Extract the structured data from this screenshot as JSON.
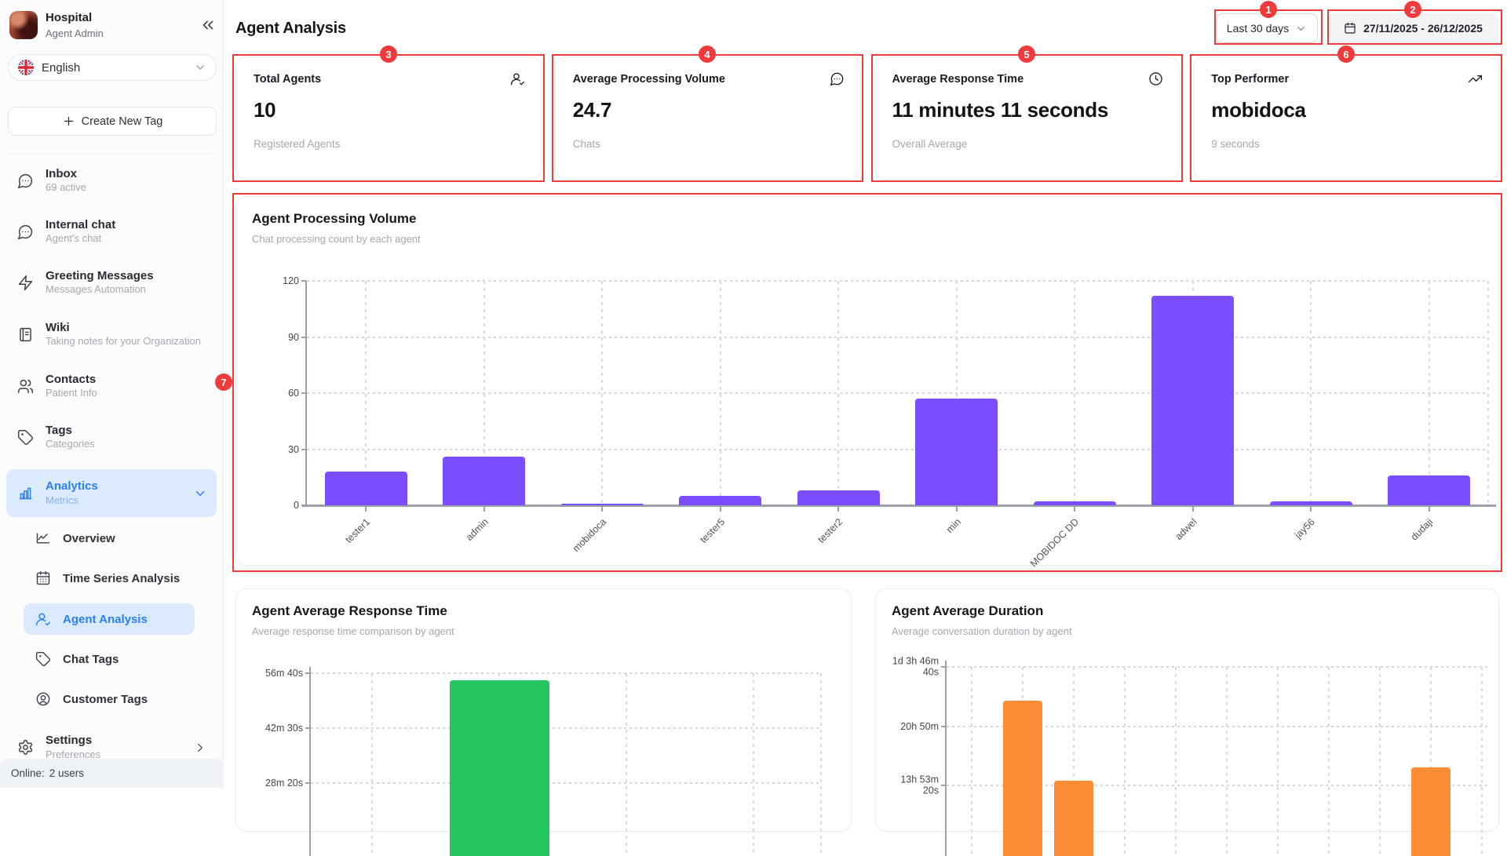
{
  "app": {
    "workspace_name": "Hospital",
    "workspace_role": "Agent Admin"
  },
  "sidebar": {
    "language": {
      "selected": "English"
    },
    "create_tag_button": "Create New Tag",
    "items": [
      {
        "label": "Inbox",
        "sublabel": "69 active"
      },
      {
        "label": "Internal chat",
        "sublabel": "Agent's chat"
      },
      {
        "label": "Greeting Messages",
        "sublabel": "Messages Automation"
      },
      {
        "label": "Wiki",
        "sublabel": "Taking notes for your Organization"
      },
      {
        "label": "Contacts",
        "sublabel": "Patient Info"
      },
      {
        "label": "Tags",
        "sublabel": "Categories"
      },
      {
        "label": "Analytics",
        "sublabel": "Metrics",
        "active": true
      }
    ],
    "analytics_children": [
      {
        "label": "Overview"
      },
      {
        "label": "Time Series Analysis"
      },
      {
        "label": "Agent Analysis",
        "active": true
      },
      {
        "label": "Chat Tags"
      },
      {
        "label": "Customer Tags"
      }
    ],
    "settings": {
      "label": "Settings",
      "sublabel": "Preferences"
    },
    "status": {
      "label": "Online:",
      "value": "2 users"
    }
  },
  "header": {
    "title": "Agent Analysis",
    "range_dropdown": "Last 30 days",
    "date_range": "27/11/2025 - 26/12/2025"
  },
  "stats": [
    {
      "title": "Total Agents",
      "value": "10",
      "subtitle": "Registered Agents",
      "icon": "user-check-icon"
    },
    {
      "title": "Average Processing Volume",
      "value": "24.7",
      "subtitle": "Chats",
      "icon": "message-dots-icon"
    },
    {
      "title": "Average Response Time",
      "value": "11 minutes 11 seconds",
      "subtitle": "Overall Average",
      "icon": "clock-icon"
    },
    {
      "title": "Top Performer",
      "value": "mobidoca",
      "subtitle": "9 seconds",
      "icon": "trending-up-icon"
    }
  ],
  "annotations": {
    "color": "#ef3b3b",
    "badges": [
      "1",
      "2",
      "3",
      "4",
      "5",
      "6",
      "7"
    ]
  },
  "chart_data": [
    {
      "id": "agent-processing-volume",
      "type": "bar",
      "title": "Agent Processing Volume",
      "subtitle": "Chat processing count by each agent",
      "categories": [
        "tester1",
        "admin",
        "mobidoca",
        "tester5",
        "tester2",
        "min",
        "MOBIDOC DD",
        "adwel",
        "jay56",
        "dudaji"
      ],
      "values": [
        18,
        26,
        1,
        5,
        8,
        57,
        2,
        112,
        2,
        16
      ],
      "ylim": [
        0,
        120
      ],
      "yticks": [
        0,
        30,
        60,
        90,
        120
      ],
      "bar_color": "#7c4dff",
      "grid": "dashed",
      "x_labels_rotated_deg": -45
    },
    {
      "id": "agent-average-response-time",
      "type": "bar",
      "title": "Agent Average Response Time",
      "subtitle": "Average response time comparison by agent",
      "unit": "seconds",
      "visible_yticks": [
        {
          "seconds": 3400,
          "label": "56m 40s"
        },
        {
          "seconds": 2550,
          "label": "42m 30s"
        },
        {
          "seconds": 1700,
          "label": "28m 20s"
        }
      ],
      "values": [
        null,
        3290,
        null,
        null
      ],
      "bar_color": "#22c55e",
      "grid": "dashed"
    },
    {
      "id": "agent-average-duration",
      "type": "bar",
      "title": "Agent Average Duration",
      "subtitle": "Average conversation duration by agent",
      "unit": "seconds",
      "visible_yticks": [
        {
          "seconds": 100000,
          "label": "1d 3h 46m\n40s"
        },
        {
          "seconds": 75000,
          "label": "20h 50m"
        },
        {
          "seconds": 50000,
          "label": "13h 53m\n20s"
        }
      ],
      "values": [
        null,
        85900,
        52000,
        null,
        null,
        null,
        null,
        null,
        null,
        57600,
        null
      ],
      "bar_color": "#f98c35",
      "grid": "dashed"
    }
  ]
}
